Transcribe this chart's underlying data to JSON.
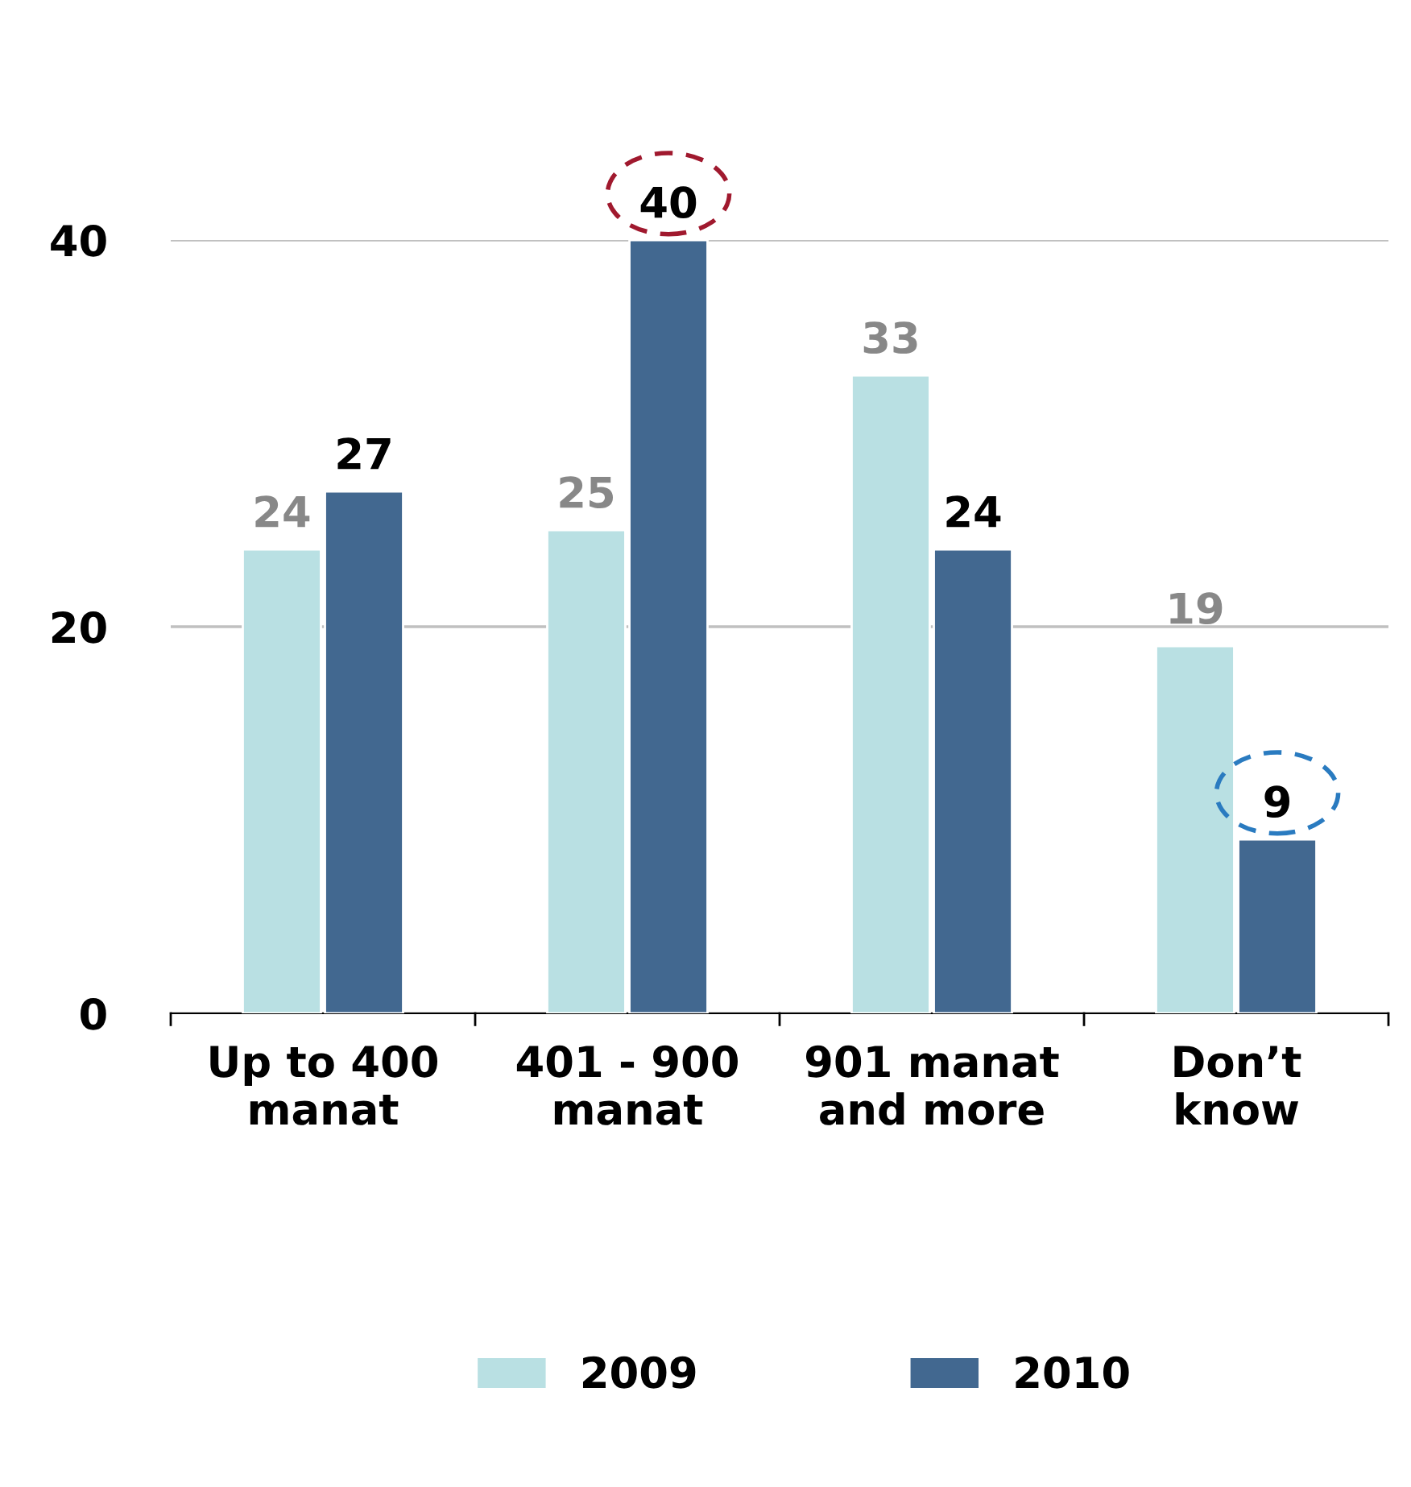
{
  "chart_data": {
    "type": "bar",
    "categories": [
      "Up to 400\nmanat",
      "401 - 900\nmanat",
      "901 manat\nand more",
      "Don’t\nknow"
    ],
    "series": [
      {
        "name": "2009",
        "color": "#b9e0e3",
        "values": [
          24,
          25,
          33,
          19
        ]
      },
      {
        "name": "2010",
        "color": "#426890",
        "values": [
          27,
          40,
          24,
          9
        ]
      }
    ],
    "ylim": [
      0,
      40
    ],
    "yticks": [
      0,
      20,
      40
    ],
    "grid": "y",
    "legend": "bottom",
    "data_labels": true
  }
}
